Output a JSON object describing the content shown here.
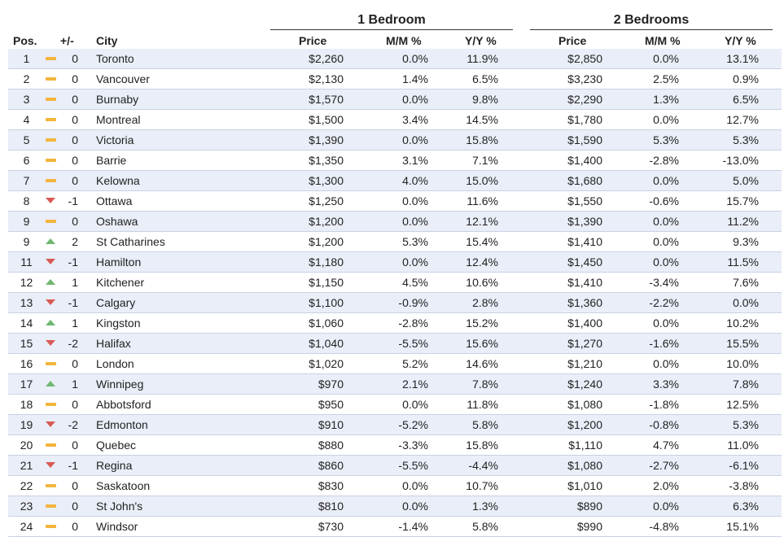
{
  "groups": {
    "one_bedroom": "1 Bedroom",
    "two_bedrooms": "2 Bedrooms"
  },
  "columns": {
    "pos": "Pos.",
    "change": "+/-",
    "city": "City",
    "price1": "Price",
    "mm1": "M/M %",
    "yy1": "Y/Y %",
    "price2": "Price",
    "mm2": "M/M %",
    "yy2": "Y/Y %"
  },
  "trend_colors": {
    "same": "#f3b53b",
    "down": "#d95a54",
    "up": "#6fb870"
  },
  "rows": [
    {
      "pos": "1",
      "trend": "same",
      "change": "0",
      "city": "Toronto",
      "p1": "$2,260",
      "m1": "0.0%",
      "y1": "11.9%",
      "p2": "$2,850",
      "m2": "0.0%",
      "y2": "13.1%"
    },
    {
      "pos": "2",
      "trend": "same",
      "change": "0",
      "city": "Vancouver",
      "p1": "$2,130",
      "m1": "1.4%",
      "y1": "6.5%",
      "p2": "$3,230",
      "m2": "2.5%",
      "y2": "0.9%"
    },
    {
      "pos": "3",
      "trend": "same",
      "change": "0",
      "city": "Burnaby",
      "p1": "$1,570",
      "m1": "0.0%",
      "y1": "9.8%",
      "p2": "$2,290",
      "m2": "1.3%",
      "y2": "6.5%"
    },
    {
      "pos": "4",
      "trend": "same",
      "change": "0",
      "city": "Montreal",
      "p1": "$1,500",
      "m1": "3.4%",
      "y1": "14.5%",
      "p2": "$1,780",
      "m2": "0.0%",
      "y2": "12.7%"
    },
    {
      "pos": "5",
      "trend": "same",
      "change": "0",
      "city": "Victoria",
      "p1": "$1,390",
      "m1": "0.0%",
      "y1": "15.8%",
      "p2": "$1,590",
      "m2": "5.3%",
      "y2": "5.3%"
    },
    {
      "pos": "6",
      "trend": "same",
      "change": "0",
      "city": "Barrie",
      "p1": "$1,350",
      "m1": "3.1%",
      "y1": "7.1%",
      "p2": "$1,400",
      "m2": "-2.8%",
      "y2": "-13.0%"
    },
    {
      "pos": "7",
      "trend": "same",
      "change": "0",
      "city": "Kelowna",
      "p1": "$1,300",
      "m1": "4.0%",
      "y1": "15.0%",
      "p2": "$1,680",
      "m2": "0.0%",
      "y2": "5.0%"
    },
    {
      "pos": "8",
      "trend": "down",
      "change": "-1",
      "city": "Ottawa",
      "p1": "$1,250",
      "m1": "0.0%",
      "y1": "11.6%",
      "p2": "$1,550",
      "m2": "-0.6%",
      "y2": "15.7%"
    },
    {
      "pos": "9",
      "trend": "same",
      "change": "0",
      "city": "Oshawa",
      "p1": "$1,200",
      "m1": "0.0%",
      "y1": "12.1%",
      "p2": "$1,390",
      "m2": "0.0%",
      "y2": "11.2%"
    },
    {
      "pos": "9",
      "trend": "up",
      "change": "2",
      "city": "St Catharines",
      "p1": "$1,200",
      "m1": "5.3%",
      "y1": "15.4%",
      "p2": "$1,410",
      "m2": "0.0%",
      "y2": "9.3%"
    },
    {
      "pos": "11",
      "trend": "down",
      "change": "-1",
      "city": "Hamilton",
      "p1": "$1,180",
      "m1": "0.0%",
      "y1": "12.4%",
      "p2": "$1,450",
      "m2": "0.0%",
      "y2": "11.5%"
    },
    {
      "pos": "12",
      "trend": "up",
      "change": "1",
      "city": "Kitchener",
      "p1": "$1,150",
      "m1": "4.5%",
      "y1": "10.6%",
      "p2": "$1,410",
      "m2": "-3.4%",
      "y2": "7.6%"
    },
    {
      "pos": "13",
      "trend": "down",
      "change": "-1",
      "city": "Calgary",
      "p1": "$1,100",
      "m1": "-0.9%",
      "y1": "2.8%",
      "p2": "$1,360",
      "m2": "-2.2%",
      "y2": "0.0%"
    },
    {
      "pos": "14",
      "trend": "up",
      "change": "1",
      "city": "Kingston",
      "p1": "$1,060",
      "m1": "-2.8%",
      "y1": "15.2%",
      "p2": "$1,400",
      "m2": "0.0%",
      "y2": "10.2%"
    },
    {
      "pos": "15",
      "trend": "down",
      "change": "-2",
      "city": "Halifax",
      "p1": "$1,040",
      "m1": "-5.5%",
      "y1": "15.6%",
      "p2": "$1,270",
      "m2": "-1.6%",
      "y2": "15.5%"
    },
    {
      "pos": "16",
      "trend": "same",
      "change": "0",
      "city": "London",
      "p1": "$1,020",
      "m1": "5.2%",
      "y1": "14.6%",
      "p2": "$1,210",
      "m2": "0.0%",
      "y2": "10.0%"
    },
    {
      "pos": "17",
      "trend": "up",
      "change": "1",
      "city": "Winnipeg",
      "p1": "$970",
      "m1": "2.1%",
      "y1": "7.8%",
      "p2": "$1,240",
      "m2": "3.3%",
      "y2": "7.8%"
    },
    {
      "pos": "18",
      "trend": "same",
      "change": "0",
      "city": "Abbotsford",
      "p1": "$950",
      "m1": "0.0%",
      "y1": "11.8%",
      "p2": "$1,080",
      "m2": "-1.8%",
      "y2": "12.5%"
    },
    {
      "pos": "19",
      "trend": "down",
      "change": "-2",
      "city": "Edmonton",
      "p1": "$910",
      "m1": "-5.2%",
      "y1": "5.8%",
      "p2": "$1,200",
      "m2": "-0.8%",
      "y2": "5.3%"
    },
    {
      "pos": "20",
      "trend": "same",
      "change": "0",
      "city": "Quebec",
      "p1": "$880",
      "m1": "-3.3%",
      "y1": "15.8%",
      "p2": "$1,110",
      "m2": "4.7%",
      "y2": "11.0%"
    },
    {
      "pos": "21",
      "trend": "down",
      "change": "-1",
      "city": "Regina",
      "p1": "$860",
      "m1": "-5.5%",
      "y1": "-4.4%",
      "p2": "$1,080",
      "m2": "-2.7%",
      "y2": "-6.1%"
    },
    {
      "pos": "22",
      "trend": "same",
      "change": "0",
      "city": "Saskatoon",
      "p1": "$830",
      "m1": "0.0%",
      "y1": "10.7%",
      "p2": "$1,010",
      "m2": "2.0%",
      "y2": "-3.8%"
    },
    {
      "pos": "23",
      "trend": "same",
      "change": "0",
      "city": "St John's",
      "p1": "$810",
      "m1": "0.0%",
      "y1": "1.3%",
      "p2": "$890",
      "m2": "0.0%",
      "y2": "6.3%"
    },
    {
      "pos": "24",
      "trend": "same",
      "change": "0",
      "city": "Windsor",
      "p1": "$730",
      "m1": "-1.4%",
      "y1": "5.8%",
      "p2": "$990",
      "m2": "-4.8%",
      "y2": "15.1%"
    }
  ]
}
